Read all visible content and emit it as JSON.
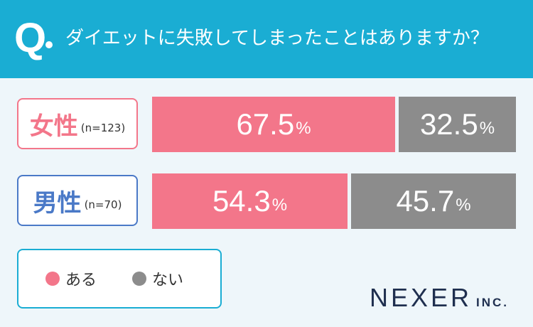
{
  "header": {
    "q_letter": "Q",
    "question": "ダイエットに失敗してしまったことはありますか？"
  },
  "colors": {
    "header_bg": "#1aadd3",
    "female": "#f3768a",
    "male": "#4a79c7",
    "yes": "#f3768a",
    "no": "#8c8c8c"
  },
  "chart_data": {
    "type": "bar",
    "stacked": true,
    "orientation": "horizontal",
    "categories": [
      "女性",
      "男性"
    ],
    "sample_sizes": [
      "(n=123)",
      "(n=70)"
    ],
    "unit": "%",
    "xlim": [
      0,
      100
    ],
    "legend_position": "bottom-left",
    "series": [
      {
        "name": "ある",
        "values": [
          67.5,
          54.3
        ],
        "color": "#f3768a"
      },
      {
        "name": "ない",
        "values": [
          32.5,
          45.7
        ],
        "color": "#8c8c8c"
      }
    ]
  },
  "legend": {
    "yes": "ある",
    "no": "ない"
  },
  "logo": {
    "main": "NEXER",
    "sub": "INC."
  }
}
